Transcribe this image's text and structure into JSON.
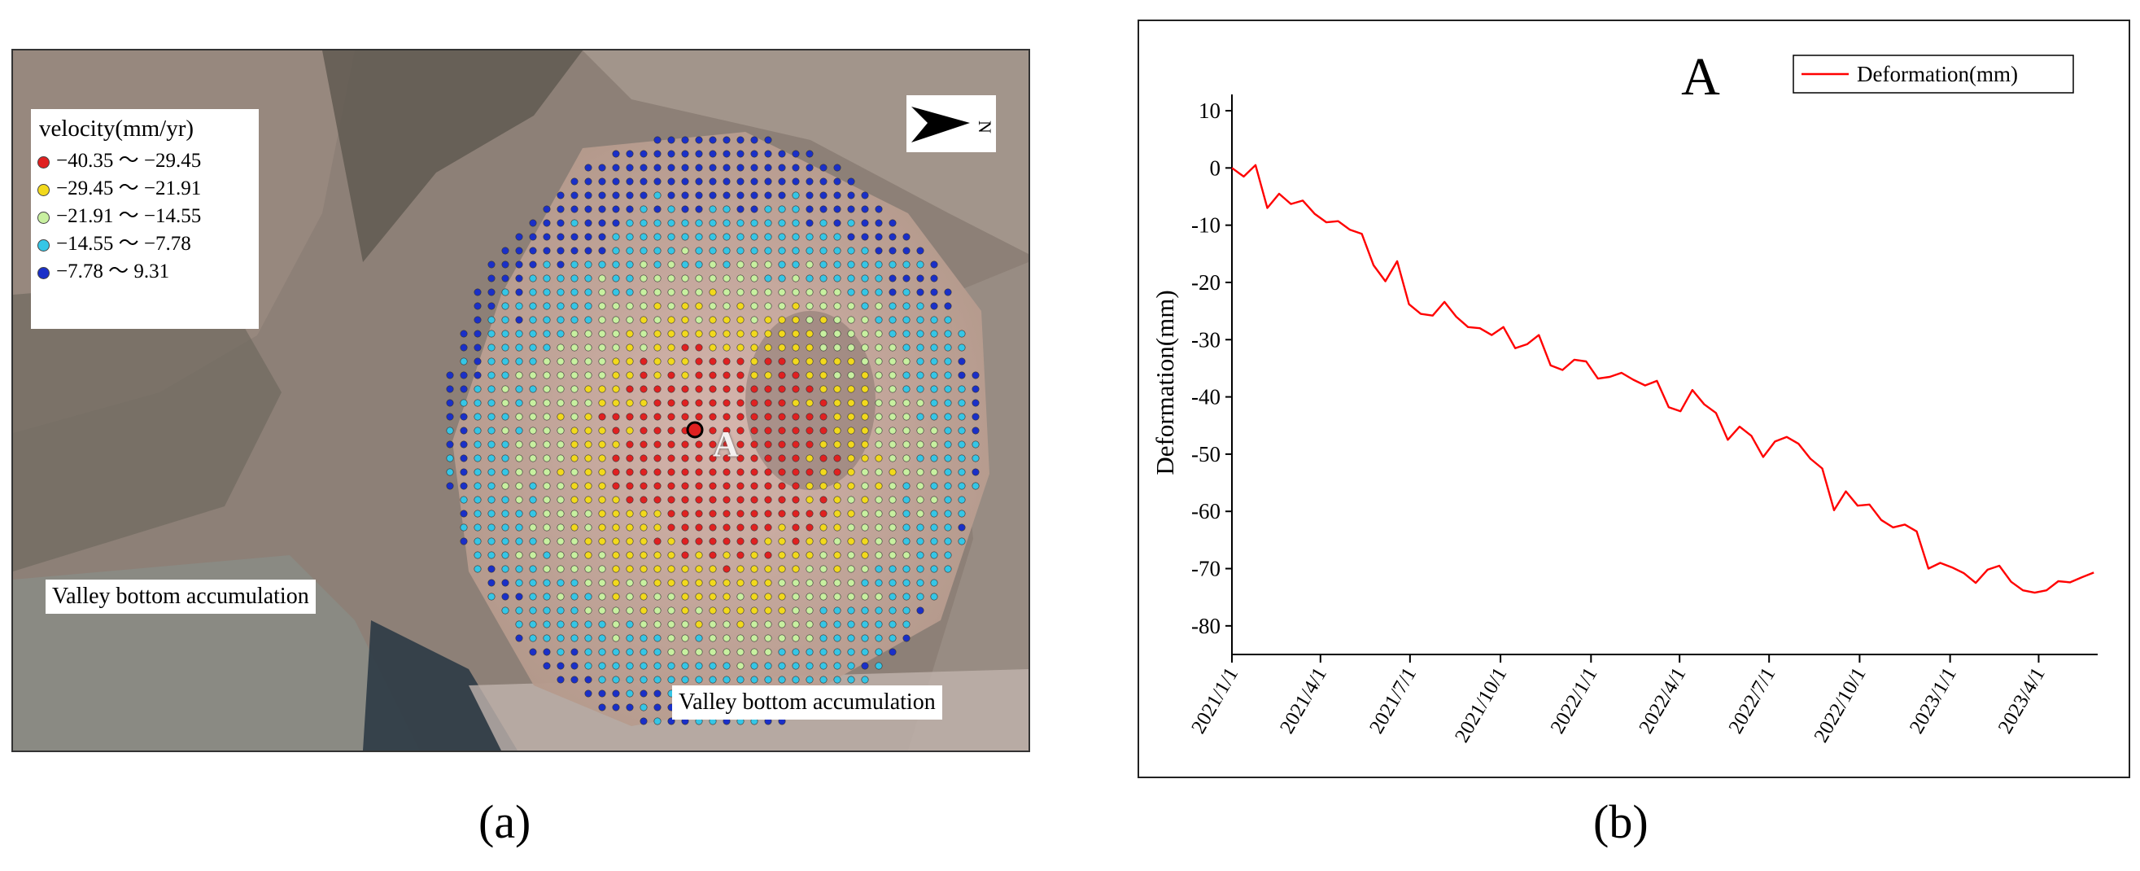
{
  "panel_a": {
    "caption": "(a)",
    "legend": {
      "title": "velocity(mm/yr)",
      "items": [
        {
          "label": "−40.35 ～ −29.45",
          "color": "#e02020"
        },
        {
          "label": "−29.45 ～ −21.91",
          "color": "#f2d91c"
        },
        {
          "label": "−21.91 ～ −14.55",
          "color": "#c8f0a0"
        },
        {
          "label": "−14.55 ～ −7.78",
          "color": "#35c6e6"
        },
        {
          "label": "−7.78 ～ 9.31",
          "color": "#1a2fc8"
        }
      ]
    },
    "north_label": "N",
    "point_label": "A",
    "annotations": {
      "valley_1": "Valley bottom accumulation",
      "valley_2": "Valley bottom accumulation"
    }
  },
  "panel_b": {
    "caption": "(b)"
  },
  "chart_data": {
    "type": "line",
    "title": "A",
    "xlabel": "",
    "ylabel": "Deformation(mm)",
    "ylim": [
      -85,
      10
    ],
    "yticks": [
      10,
      0,
      -10,
      -20,
      -30,
      -40,
      -50,
      -60,
      -70,
      -80
    ],
    "xlim": [
      "2021/1/1",
      "2023/5/31"
    ],
    "xticks": [
      "2021/1/1",
      "2021/4/1",
      "2021/7/1",
      "2021/10/1",
      "2022/1/1",
      "2022/4/1",
      "2022/7/1",
      "2022/10/1",
      "2023/1/1",
      "2023/4/1"
    ],
    "legend_position": "top-right",
    "series": [
      {
        "name": "Deformation(mm)",
        "color": "#ff0000",
        "x_days": [
          0,
          12,
          24,
          36,
          48,
          60,
          72,
          84,
          96,
          108,
          120,
          132,
          144,
          156,
          168,
          180,
          192,
          204,
          216,
          228,
          240,
          252,
          264,
          276,
          288,
          300,
          312,
          324,
          336,
          348,
          360,
          372,
          384,
          396,
          408,
          420,
          432,
          444,
          456,
          468,
          480,
          492,
          504,
          516,
          528,
          540,
          552,
          564,
          576,
          588,
          600,
          612,
          624,
          636,
          648,
          660,
          672,
          684,
          696,
          708,
          720,
          732,
          744,
          756,
          768,
          780,
          792,
          804,
          816,
          828,
          840,
          852,
          864,
          876
        ],
        "values": [
          0,
          -1.5,
          0.5,
          -7,
          -4.5,
          -6.3,
          -5.7,
          -8,
          -9.5,
          -9.3,
          -10.8,
          -11.5,
          -17,
          -19.8,
          -16.3,
          -23.8,
          -25.5,
          -25.8,
          -23.4,
          -26,
          -27.8,
          -28,
          -29.2,
          -27.8,
          -31.5,
          -30.8,
          -29.2,
          -34.5,
          -35.3,
          -33.5,
          -33.8,
          -36.8,
          -36.5,
          -35.8,
          -37,
          -38,
          -37.2,
          -41.8,
          -42.5,
          -38.8,
          -41.3,
          -42.8,
          -47.5,
          -45.2,
          -46.8,
          -50.5,
          -47.8,
          -47,
          -48.2,
          -50.8,
          -52.5,
          -59.8,
          -56.5,
          -59,
          -58.8,
          -61.5,
          -62.8,
          -62.3,
          -63.5,
          -70,
          -69,
          -69.8,
          -70.8,
          -72.5,
          -70.2,
          -69.5,
          -72.3,
          -73.8,
          -74.2,
          -73.8,
          -72.2,
          -72.4,
          -71.5,
          -70.7
        ]
      }
    ]
  }
}
